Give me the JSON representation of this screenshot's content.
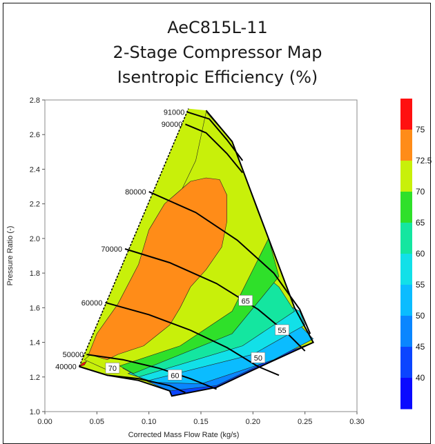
{
  "chart_data": {
    "type": "contour",
    "title_lines": [
      "AeC815L-11",
      "2-Stage Compressor Map",
      "Isentropic Efficiency (%)"
    ],
    "xlabel": "Corrected Mass Flow Rate (kg/s)",
    "ylabel": "Pressure Ratio (-)",
    "xlim": [
      0.0,
      0.3
    ],
    "ylim": [
      1.0,
      2.8
    ],
    "x_ticks": [
      "0.00",
      "0.05",
      "0.10",
      "0.15",
      "0.20",
      "0.25",
      "0.30"
    ],
    "y_ticks": [
      "1.0",
      "1.2",
      "1.4",
      "1.6",
      "1.8",
      "2.0",
      "2.2",
      "2.4",
      "2.6",
      "2.8"
    ],
    "speed_lines": [
      {
        "label": "40000",
        "points": [
          [
            0.033,
            1.26
          ],
          [
            0.06,
            1.21
          ],
          [
            0.09,
            1.19
          ],
          [
            0.12,
            1.15
          ],
          [
            0.135,
            1.11
          ]
        ]
      },
      {
        "label": "50000",
        "points": [
          [
            0.04,
            1.33
          ],
          [
            0.075,
            1.3
          ],
          [
            0.11,
            1.25
          ],
          [
            0.14,
            1.19
          ],
          [
            0.165,
            1.13
          ]
        ]
      },
      {
        "label": "60000",
        "points": [
          [
            0.058,
            1.63
          ],
          [
            0.1,
            1.56
          ],
          [
            0.14,
            1.47
          ],
          [
            0.175,
            1.37
          ],
          [
            0.205,
            1.26
          ],
          [
            0.225,
            1.21
          ]
        ]
      },
      {
        "label": "70000",
        "points": [
          [
            0.077,
            1.94
          ],
          [
            0.12,
            1.86
          ],
          [
            0.165,
            1.74
          ],
          [
            0.205,
            1.59
          ],
          [
            0.235,
            1.44
          ],
          [
            0.25,
            1.35
          ]
        ]
      },
      {
        "label": "80000",
        "points": [
          [
            0.1,
            2.27
          ],
          [
            0.145,
            2.15
          ],
          [
            0.185,
            1.99
          ],
          [
            0.22,
            1.8
          ],
          [
            0.245,
            1.59
          ],
          [
            0.255,
            1.45
          ]
        ]
      },
      {
        "label": "90000",
        "points": [
          [
            0.135,
            2.66
          ],
          [
            0.155,
            2.61
          ],
          [
            0.175,
            2.49
          ],
          [
            0.19,
            2.38
          ]
        ]
      },
      {
        "label": "91000",
        "points": [
          [
            0.137,
            2.73
          ],
          [
            0.158,
            2.69
          ],
          [
            0.175,
            2.57
          ],
          [
            0.19,
            2.45
          ]
        ]
      }
    ],
    "efficiency_labels": [
      {
        "text": "70",
        "x": 0.065,
        "y": 1.25
      },
      {
        "text": "60",
        "x": 0.125,
        "y": 1.21
      },
      {
        "text": "50",
        "x": 0.205,
        "y": 1.31
      },
      {
        "text": "55",
        "x": 0.228,
        "y": 1.47
      },
      {
        "text": "65",
        "x": 0.193,
        "y": 1.64
      }
    ],
    "colorbar": {
      "levels": [
        40,
        45,
        50,
        55,
        60,
        65,
        70,
        72.5,
        75
      ],
      "labels": [
        "40",
        "45",
        "50",
        "55",
        "60",
        "65",
        "70",
        "72.5",
        "75"
      ],
      "colors": [
        "#0a0aff",
        "#0b45ff",
        "#0a86ff",
        "#0bbcff",
        "#12e0e8",
        "#14e6a0",
        "#2fe02a",
        "#c8f00a",
        "#ff8c18",
        "#ff1010"
      ]
    }
  }
}
